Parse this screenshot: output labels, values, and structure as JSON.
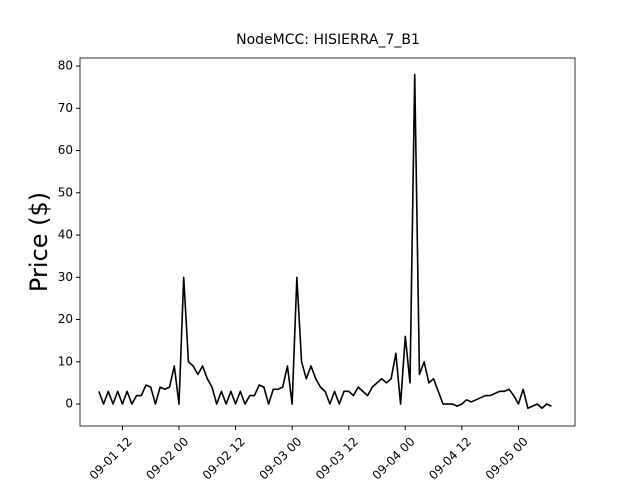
{
  "chart_data": {
    "type": "line",
    "title": "NodeMCC: HISIERRA_7_B1",
    "ylabel": "Price ($)",
    "x": [
      "09-01 07",
      "09-01 08",
      "09-01 09",
      "09-01 10",
      "09-01 11",
      "09-01 12",
      "09-01 13",
      "09-01 14",
      "09-01 15",
      "09-01 16",
      "09-01 17",
      "09-01 18",
      "09-01 19",
      "09-01 20",
      "09-01 21",
      "09-01 22",
      "09-01 23",
      "09-02 00",
      "09-02 01",
      "09-02 02",
      "09-02 03",
      "09-02 04",
      "09-02 05",
      "09-02 06",
      "09-02 07",
      "09-02 08",
      "09-02 09",
      "09-02 10",
      "09-02 11",
      "09-02 12",
      "09-02 13",
      "09-02 14",
      "09-02 15",
      "09-02 16",
      "09-02 17",
      "09-02 18",
      "09-02 19",
      "09-02 20",
      "09-02 21",
      "09-02 22",
      "09-02 23",
      "09-03 00",
      "09-03 01",
      "09-03 02",
      "09-03 03",
      "09-03 04",
      "09-03 05",
      "09-03 06",
      "09-03 07",
      "09-03 08",
      "09-03 09",
      "09-03 10",
      "09-03 11",
      "09-03 12",
      "09-03 13",
      "09-03 14",
      "09-03 15",
      "09-03 16",
      "09-03 17",
      "09-03 18",
      "09-03 19",
      "09-03 20",
      "09-03 21",
      "09-03 22",
      "09-03 23",
      "09-04 00",
      "09-04 01",
      "09-04 02",
      "09-04 03",
      "09-04 04",
      "09-04 05",
      "09-04 06",
      "09-04 07",
      "09-04 08",
      "09-04 09",
      "09-04 10",
      "09-04 11",
      "09-04 12",
      "09-04 13",
      "09-04 14",
      "09-04 15",
      "09-04 16",
      "09-04 17",
      "09-04 18",
      "09-04 19",
      "09-04 20",
      "09-04 21",
      "09-04 22",
      "09-04 23",
      "09-05 00",
      "09-05 01",
      "09-05 02",
      "09-05 03",
      "09-05 04",
      "09-05 05",
      "09-05 06",
      "09-05 07"
    ],
    "series": [
      {
        "color": "#000000",
        "values": [
          3,
          0,
          3,
          0,
          3,
          0,
          3,
          0,
          2,
          2,
          4.5,
          4,
          0,
          4,
          3.5,
          4,
          9,
          0,
          30,
          10,
          9,
          7,
          9,
          6,
          4,
          0,
          3,
          0,
          3,
          0,
          3,
          0,
          2,
          2,
          4.5,
          4,
          0,
          3.5,
          3.5,
          4,
          9,
          0,
          30,
          10,
          6,
          9,
          6,
          4,
          3,
          0,
          3,
          0,
          3,
          3,
          2,
          4,
          3,
          2,
          4,
          5,
          6,
          5,
          6,
          12,
          0,
          16,
          5,
          78,
          7,
          10,
          5,
          6,
          3,
          0,
          0,
          0,
          -0.5,
          0,
          1,
          0.5,
          1,
          1.5,
          2,
          2,
          2.5,
          3,
          3,
          3.5,
          2,
          0,
          3.5,
          -1,
          -0.5,
          0,
          -1,
          0,
          -0.5
        ]
      }
    ],
    "xlim": [
      "09-01 03",
      "09-05 12"
    ],
    "xticks": [
      "09-01 12",
      "09-02 00",
      "09-02 12",
      "09-03 00",
      "09-03 12",
      "09-04 00",
      "09-04 12",
      "09-05 00"
    ],
    "ylim": [
      -5.2,
      81.9
    ],
    "yticks": [
      0,
      10,
      20,
      30,
      40,
      50,
      60,
      70,
      80
    ],
    "grid": false
  }
}
